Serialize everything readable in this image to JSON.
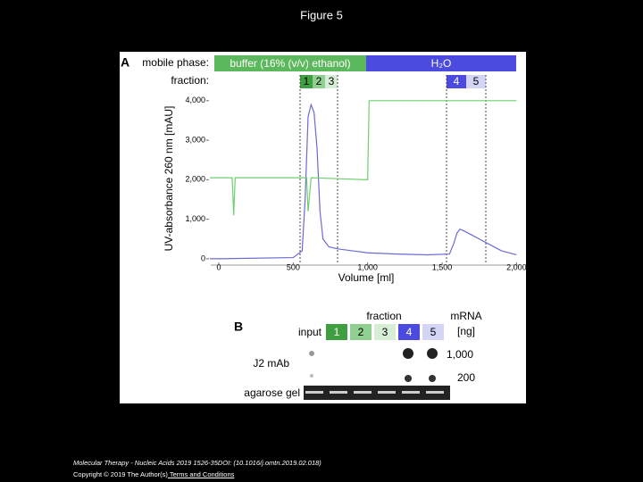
{
  "title": "Figure 5",
  "chart_data": {
    "type": "line",
    "panel": "A",
    "mobile_phase_label": "mobile phase:",
    "mobile_phases": [
      "buffer (16% (v/v) ethanol)",
      "H₂O"
    ],
    "fraction_label": "fraction:",
    "fractions": [
      "1",
      "2",
      "3",
      "4",
      "5"
    ],
    "ylabel": "UV-absorbance 260 nm [mAU]",
    "xlabel": "Volume [ml]",
    "xlim": [
      -60,
      2010
    ],
    "ylim": [
      -70,
      4290
    ],
    "xticks": [
      0,
      500,
      {
        "value": 1000,
        "label": "1,000"
      },
      {
        "value": 1500,
        "label": "1,500"
      },
      {
        "value": 2000,
        "label": "2,000"
      }
    ],
    "yticks": [
      0,
      {
        "value": 1000,
        "label": "1,000"
      },
      {
        "value": 2000,
        "label": "2,000"
      },
      {
        "value": 3000,
        "label": "3,000"
      },
      {
        "value": 4000,
        "label": "4,000"
      }
    ],
    "series": [
      {
        "color": "#6b6bd6",
        "x": [
          -60,
          0,
          500,
          560,
          580,
          600,
          620,
          640,
          660,
          680,
          700,
          740,
          800,
          900,
          1000,
          1200,
          1400,
          1550,
          1580,
          1600,
          1620,
          1650,
          1700,
          1750,
          1800,
          1900,
          2000
        ],
        "values": [
          0,
          0,
          30,
          200,
          1500,
          3600,
          3900,
          3700,
          2800,
          1200,
          500,
          300,
          250,
          200,
          150,
          120,
          100,
          120,
          400,
          650,
          750,
          700,
          600,
          500,
          400,
          200,
          100
        ]
      },
      {
        "color": "#6fcf6f",
        "x": [
          -60,
          90,
          100,
          110,
          590,
          600,
          620,
          1000,
          1010,
          2000
        ],
        "values": [
          2050,
          2050,
          1100,
          2050,
          2050,
          1200,
          2050,
          2000,
          4000,
          4000
        ]
      }
    ]
  },
  "panel_b": {
    "label": "B",
    "fraction_header": "fraction",
    "input": "input",
    "fractions": [
      "1",
      "2",
      "3",
      "4",
      "5"
    ],
    "mrna_header": [
      "mRNA",
      "[ng]"
    ],
    "rows": [
      "J2 mAb",
      "agarose gel"
    ],
    "amounts": [
      "1,000",
      "200"
    ]
  },
  "footer": {
    "citation": "Molecular Therapy - Nucleic Acids 2019 1526-35DOI: (10.1016/j.omtn.2019.02.018)",
    "copyright": "Copyright © 2019 The Author(s)",
    "link": " Terms and Conditions"
  }
}
